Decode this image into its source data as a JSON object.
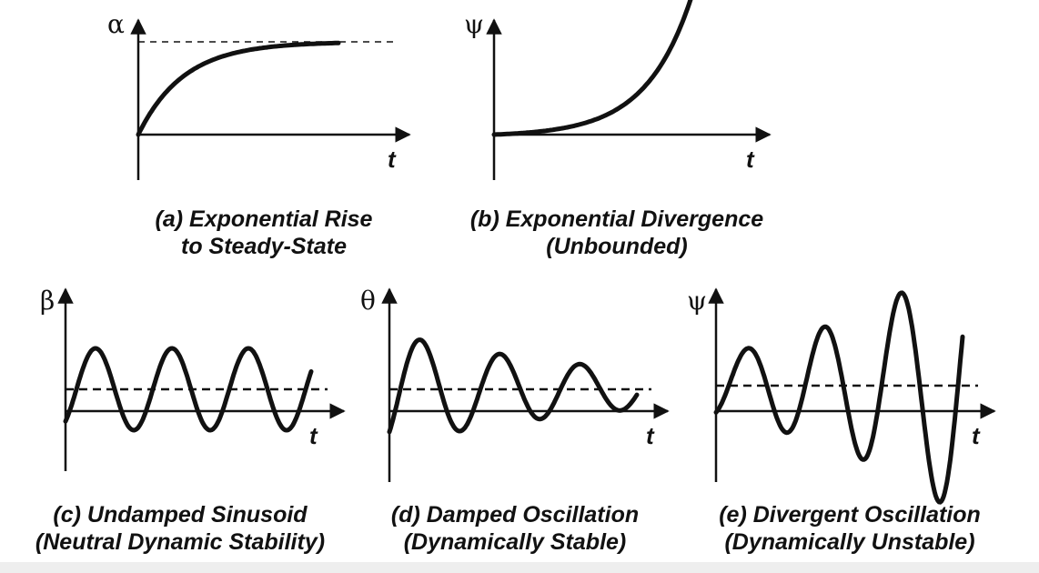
{
  "panels": [
    {
      "id": "a",
      "ylabel": "α",
      "xlabel": "t",
      "caption_line1": "(a)  Exponential Rise",
      "caption_line2": "to Steady-State",
      "curve": "exponential-rise"
    },
    {
      "id": "b",
      "ylabel": "ψ",
      "xlabel": "t",
      "caption_line1": "(b)  Exponential Divergence",
      "caption_line2": "(Unbounded)",
      "curve": "exponential-divergence"
    },
    {
      "id": "c",
      "ylabel": "β",
      "xlabel": "t",
      "caption_line1": "(c)  Undamped Sinusoid",
      "caption_line2": "(Neutral Dynamic Stability)",
      "curve": "undamped"
    },
    {
      "id": "d",
      "ylabel": "θ",
      "xlabel": "t",
      "caption_line1": "(d)  Damped Oscillation",
      "caption_line2": "(Dynamically Stable)",
      "curve": "damped"
    },
    {
      "id": "e",
      "ylabel": "ψ",
      "xlabel": "t",
      "caption_line1": "(e)  Divergent Oscillation",
      "caption_line2": "(Dynamically Unstable)",
      "curve": "divergent"
    }
  ],
  "colors": {
    "ink": "#111111",
    "background": "#ffffff"
  }
}
